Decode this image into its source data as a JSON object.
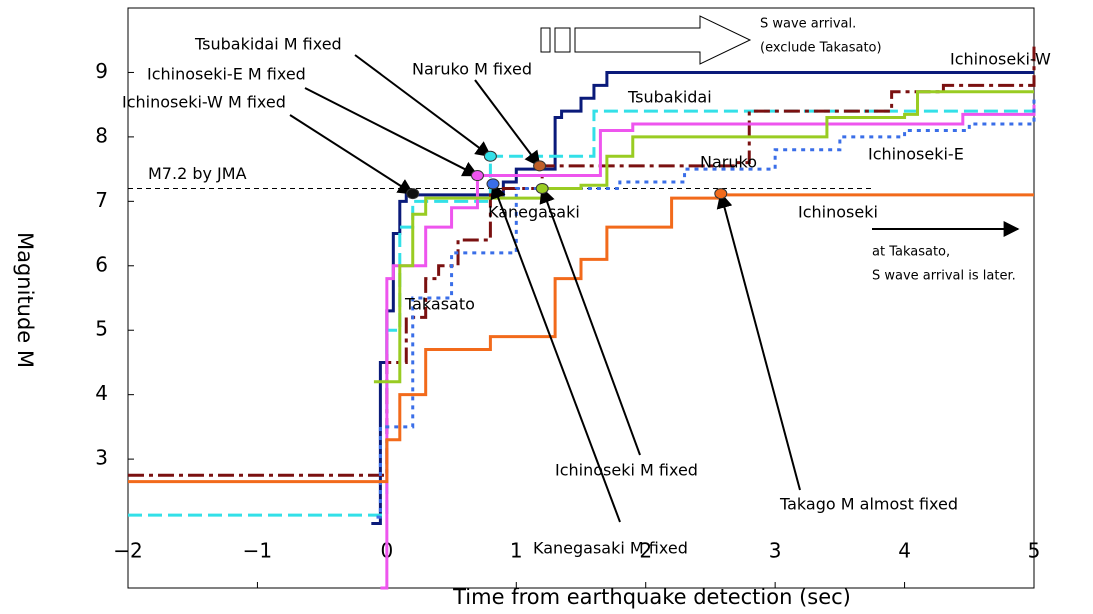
{
  "chart_data": {
    "type": "line",
    "step": true,
    "x_label": "Time from earthquake detection (sec)",
    "y_label": "Magnitude M",
    "xlim": [
      -2,
      5
    ],
    "xticks": [
      {
        "value": -2,
        "label": "−2"
      },
      {
        "value": -1,
        "label": "−1"
      },
      0,
      1,
      2,
      3,
      4,
      5
    ],
    "ylim": [
      1,
      10
    ],
    "yticks": [
      3,
      4,
      5,
      6,
      7,
      8,
      9
    ],
    "series": [
      {
        "name": "Ichinoseki-W",
        "color": "#0a1a7a",
        "dash": "",
        "x": [
          -0.12,
          -0.05,
          0.0,
          0.05,
          0.1,
          0.15,
          0.2,
          0.6,
          0.9,
          1.0,
          1.3,
          1.35,
          1.5,
          1.6,
          1.7,
          5.0
        ],
        "values": [
          2.0,
          4.5,
          5.3,
          6.5,
          7.0,
          7.1,
          7.1,
          7.1,
          7.3,
          7.5,
          8.3,
          8.4,
          8.6,
          8.8,
          9.0,
          9.0
        ]
      },
      {
        "name": "Tsubakidai",
        "color": "#33e0e8",
        "dash": "14 6",
        "x": [
          -2,
          -0.1,
          0.0,
          0.1,
          0.2,
          0.8,
          1.6,
          5.0
        ],
        "values": [
          2.13,
          2.13,
          5.0,
          6.6,
          7.0,
          7.7,
          8.4,
          8.4
        ]
      },
      {
        "name": "Naruko",
        "color": "#7a1010",
        "dash": "16 5 4 5",
        "x": [
          -2,
          -0.1,
          0.0,
          0.15,
          0.3,
          0.4,
          0.55,
          0.8,
          0.9,
          1.2,
          2.7,
          2.8,
          3.8,
          3.9,
          4.3,
          5.0
        ],
        "values": [
          2.75,
          2.75,
          4.5,
          5.2,
          5.8,
          6.0,
          6.4,
          7.1,
          7.2,
          7.55,
          7.6,
          8.4,
          8.4,
          8.7,
          8.8,
          9.4
        ]
      },
      {
        "name": "Ichinoseki-E",
        "color": "#ee55ee",
        "dash": "",
        "x": [
          -0.05,
          0.0,
          0.05,
          0.3,
          0.5,
          0.7,
          1.65,
          1.9,
          4.45,
          5.0
        ],
        "values": [
          1.0,
          5.8,
          6.0,
          6.6,
          6.9,
          7.4,
          8.1,
          8.2,
          8.35,
          8.5
        ]
      },
      {
        "name": "Kanegasaki",
        "color": "#3a6ee8",
        "dash": "4 5",
        "x": [
          -0.08,
          -0.05,
          0.2,
          0.5,
          1.0,
          1.8,
          2.3,
          3.0,
          3.5,
          4.0,
          4.5,
          5.0
        ],
        "values": [
          2.1,
          3.5,
          5.5,
          6.2,
          7.2,
          7.3,
          7.5,
          7.8,
          8.0,
          8.1,
          8.2,
          8.6
        ]
      },
      {
        "name": "Ichinoseki",
        "color": "#99cc22",
        "dash": "",
        "x": [
          -0.1,
          0.1,
          0.2,
          0.3,
          1.2,
          1.5,
          1.7,
          1.9,
          3.4,
          4.0,
          4.1,
          5.0
        ],
        "values": [
          4.2,
          6.0,
          6.8,
          7.05,
          7.2,
          7.25,
          7.7,
          8.0,
          8.3,
          8.35,
          8.7,
          8.7
        ]
      },
      {
        "name": "Takasato",
        "color": "#f26a1b",
        "dash": "",
        "x": [
          -2,
          -0.1,
          0.0,
          0.1,
          0.3,
          0.8,
          1.3,
          1.5,
          1.7,
          2.2,
          2.6,
          5.0
        ],
        "values": [
          2.65,
          2.65,
          3.3,
          4.0,
          4.7,
          4.9,
          5.8,
          6.1,
          6.6,
          7.05,
          7.1,
          7.1
        ]
      }
    ],
    "reference": {
      "label": "M7.2 by JMA",
      "value": 7.2,
      "x_end": 3.75
    },
    "annotations": [
      {
        "text": "Tsubakidai  M  fixed",
        "x": 0.8,
        "y": 7.7,
        "color": "#33e0e8"
      },
      {
        "text": "Ichinoseki-E  M  fixed",
        "x": 0.7,
        "y": 7.4,
        "color": "#ee55ee"
      },
      {
        "text": "Ichinoseki-W  M  fixed",
        "x": 0.2,
        "y": 7.12,
        "color": "#111111"
      },
      {
        "text": "Naruko  M  fixed",
        "x": 1.18,
        "y": 7.55,
        "color": "#c0602a"
      },
      {
        "text": "Ichinoseki  M  fixed",
        "x": 1.2,
        "y": 7.2,
        "color": "#99cc22"
      },
      {
        "text": "Kanegasaki  M  fixed",
        "x": 0.82,
        "y": 7.27,
        "color": "#3a6ee8"
      },
      {
        "text": "Takago  M  almost fixed",
        "x": 2.58,
        "y": 7.12,
        "color": "#f26a1b"
      }
    ],
    "notes": [
      "S wave arrival.",
      "(exclude Takasato)",
      "at Takasato,",
      "S wave arrival is later."
    ]
  }
}
